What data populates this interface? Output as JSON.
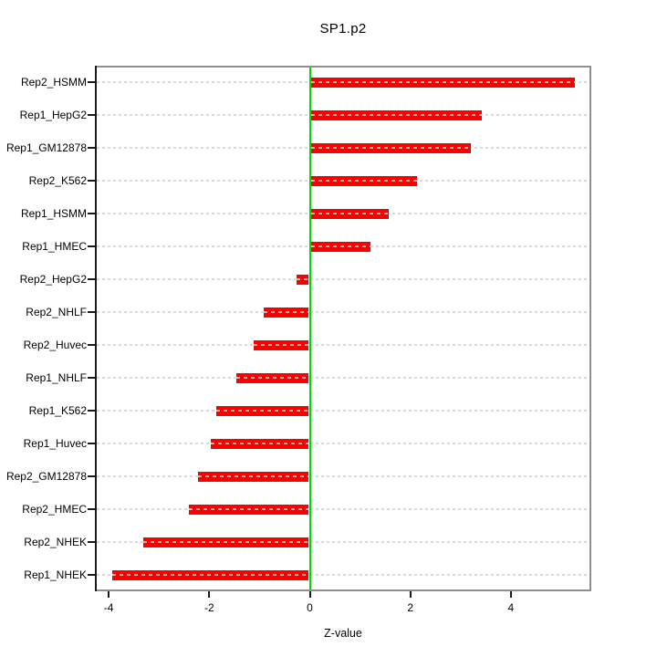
{
  "page": {
    "background": "#ffffff"
  },
  "chart_data": {
    "type": "bar",
    "orientation": "horizontal",
    "title": "SP1.p2",
    "xlabel": "Z-value",
    "ylabel": "",
    "categories": [
      "Rep2_HSMM",
      "Rep1_HepG2",
      "Rep1_GM12878",
      "Rep2_K562",
      "Rep1_HSMM",
      "Rep1_HMEC",
      "Rep2_HepG2",
      "Rep2_NHLF",
      "Rep2_Huvec",
      "Rep1_NHLF",
      "Rep1_K562",
      "Rep1_Huvec",
      "Rep2_GM12878",
      "Rep2_HMEC",
      "Rep2_NHEK",
      "Rep1_NHEK"
    ],
    "values": [
      5.25,
      3.4,
      3.18,
      2.12,
      1.55,
      1.18,
      -0.25,
      -0.9,
      -1.1,
      -1.45,
      -1.85,
      -1.95,
      -2.2,
      -2.38,
      -3.3,
      -3.92
    ],
    "x_ticks": [
      -4,
      -2,
      0,
      2,
      4
    ],
    "xlim": [
      -4.2,
      5.6
    ],
    "grid": "horizontal-dashed-per-category",
    "legend": "none",
    "zero_reference_line": 0,
    "colors": {
      "bar": "#fa0000",
      "bar_dash": "#ffb0b0",
      "zero_line": "#00d900",
      "grid_line": "#d9d9d9",
      "box_border": "#8f8f8f",
      "axis_line": "#1a1a1a",
      "text": "#000000"
    }
  }
}
